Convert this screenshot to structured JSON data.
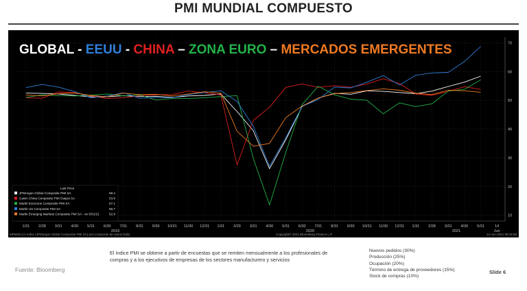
{
  "slide": {
    "title": "PMI MUNDIAL COMPUESTO",
    "description": "El índice PMI se obtiene a partir de encuestas que se remiten mensualmente a los profesionales de compras y a los ejecutivos de empresas de los sectores manufacturero y servicios",
    "source": "Fuente: Bloomberg",
    "components": [
      "Nuevos pedidos (30%)",
      "Producción (25%)",
      "Ocupación (20%)",
      "Término de entrega de proveedores (15%)",
      "Stock de compras (10%)"
    ],
    "slide_number": "Slide 6"
  },
  "chart_data": {
    "type": "line",
    "headline": [
      {
        "text": "GLOBAL",
        "color": "#ffffff"
      },
      {
        "text": " - ",
        "color": "#ffffff"
      },
      {
        "text": "EEUU",
        "color": "#2f7fd8"
      },
      {
        "text": " - ",
        "color": "#ffffff"
      },
      {
        "text": "CHINA",
        "color": "#e02020"
      },
      {
        "text": " – ",
        "color": "#ffffff"
      },
      {
        "text": "ZONA EURO",
        "color": "#22b24a"
      },
      {
        "text": " – ",
        "color": "#ffffff"
      },
      {
        "text": "MERCADOS EMERGENTES",
        "color": "#f07a22"
      }
    ],
    "x_labels": [
      "1/31",
      "2/28",
      "3/31",
      "4/30",
      "5/31",
      "6/30",
      "7/31",
      "8/31",
      "9/30",
      "10/31",
      "11/30",
      "12/31",
      "1/31",
      "2/29",
      "3/31",
      "4/30",
      "5/31",
      "6/30",
      "7/31",
      "8/31",
      "9/30",
      "10/31",
      "11/30",
      "12/31",
      "1/31",
      "2/28",
      "3/31",
      "4/30",
      "5/31",
      "14"
    ],
    "x_sublabel": "Jun",
    "year_labels": [
      "2019",
      "2020",
      "2021"
    ],
    "y_ticks": [
      10,
      20,
      30,
      40,
      50,
      60,
      70
    ],
    "ylim": [
      8,
      72
    ],
    "legend_header": "Last Price",
    "series": [
      {
        "name": "JPMorgan Global Composite PMI SA",
        "last": "58.4",
        "color": "#ffffff",
        "values": [
          52.5,
          52.4,
          52.2,
          51.7,
          51.2,
          51.2,
          51.6,
          51.3,
          51.4,
          51.0,
          51.5,
          51.7,
          52.2,
          46.1,
          39.4,
          26.2,
          36.3,
          47.8,
          50.8,
          52.4,
          52.1,
          53.3,
          53.1,
          52.7,
          52.3,
          53.2,
          54.8,
          56.3,
          58.4
        ]
      },
      {
        "name": "Caixin China Composite PMI Output SA",
        "last": "53.8",
        "color": "#e02020",
        "values": [
          50.9,
          50.7,
          52.9,
          52.7,
          51.5,
          50.6,
          50.9,
          51.6,
          51.9,
          52.0,
          53.2,
          52.6,
          51.9,
          27.5,
          43.0,
          47.6,
          54.5,
          55.7,
          54.5,
          55.1,
          54.5,
          55.7,
          57.5,
          55.8,
          52.2,
          51.7,
          53.1,
          54.7,
          53.8
        ]
      },
      {
        "name": "Markit Eurozone Composite PMI SA",
        "last": "57.1",
        "color": "#22b24a",
        "values": [
          51.0,
          51.9,
          51.6,
          51.5,
          51.8,
          52.2,
          51.5,
          51.9,
          50.1,
          50.6,
          50.6,
          50.9,
          51.3,
          51.6,
          29.7,
          13.6,
          31.9,
          48.5,
          54.9,
          51.9,
          50.4,
          50.0,
          45.3,
          49.1,
          47.8,
          48.8,
          53.2,
          53.8,
          57.1
        ]
      },
      {
        "name": "Markit US Composite PMI SA",
        "last": "68.7",
        "color": "#2f7fd8",
        "values": [
          54.4,
          55.5,
          54.6,
          53.0,
          50.9,
          51.5,
          52.6,
          50.7,
          51.0,
          50.9,
          52.0,
          52.7,
          53.3,
          49.6,
          40.9,
          27.0,
          37.0,
          47.9,
          50.3,
          54.6,
          54.3,
          56.3,
          58.6,
          55.3,
          58.7,
          59.5,
          59.7,
          63.5,
          68.7
        ]
      },
      {
        "name": "Markit Emerging Markets Composite PMI SA  -  on 5/31/21",
        "last": "52.8",
        "color": "#f07a22",
        "values": [
          51.8,
          51.5,
          52.3,
          52.5,
          51.7,
          51.2,
          52.5,
          52.0,
          52.1,
          51.5,
          52.2,
          53.0,
          52.5,
          39.2,
          34.0,
          35.0,
          44.0,
          48.0,
          50.8,
          52.3,
          52.7,
          53.4,
          54.0,
          53.5,
          52.5,
          52.0,
          53.5,
          53.3,
          52.8
        ]
      }
    ],
    "footer_left": "MPMIGLCA Index (JPMorgan Global Composite PMI SA) pmi composite de varios  Daily",
    "footer_mid": "Copyright© 2021 Bloomberg Finance L.P.",
    "footer_right": "14-Jun-2021 09:15:58"
  }
}
